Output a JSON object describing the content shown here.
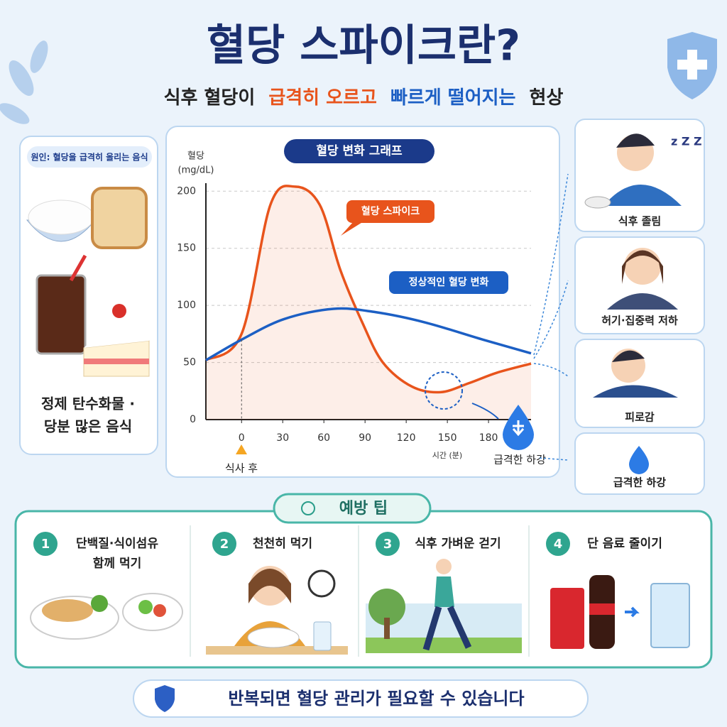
{
  "header": {
    "title": "혈당 스파이크란?",
    "subtitle": [
      {
        "text": "식후 혈당이",
        "color": "#222222"
      },
      {
        "text": "급격히 오르고",
        "color": "#e8541c"
      },
      {
        "text": "빠르게 떨어지는",
        "color": "#1c5fc4"
      },
      {
        "text": "현상",
        "color": "#222222"
      }
    ]
  },
  "cause": {
    "label": "원인: 혈당을 급격히 올리는 음식",
    "text": [
      "정제 탄수화물 ·",
      "당분 많은 음식"
    ]
  },
  "chart_data": {
    "type": "line",
    "title": "혈당 변화 그래프",
    "y_label": "혈당",
    "y_unit": "(mg/dL)",
    "x_label": "시간 (분)",
    "xlim": [
      -26,
      211
    ],
    "xticks": [
      0,
      30,
      60,
      90,
      120,
      150,
      180
    ],
    "ylim": [
      0,
      207
    ],
    "yticks": [
      0,
      50,
      100,
      150,
      200
    ],
    "grid": true,
    "series": [
      {
        "name": "혈당 스파이크",
        "color": "#e8541c",
        "x": [
          -26,
          0,
          21,
          39,
          57,
          72,
          88,
          103,
          124,
          145,
          166,
          186,
          211
        ],
        "values": [
          52,
          75,
          188,
          204,
          188,
          131,
          85,
          50,
          29,
          24,
          32,
          41,
          49
        ]
      },
      {
        "name": "정상적인 혈당 변화",
        "color": "#1c5fc4",
        "x": [
          -26,
          0,
          31,
          67,
          98,
          134,
          176,
          211
        ],
        "values": [
          52,
          70,
          88,
          97,
          94,
          85,
          70,
          58
        ]
      }
    ],
    "annotations": {
      "meal": "식사 후",
      "drop": "급격한 하강"
    }
  },
  "symptoms": [
    "식후 졸림",
    "허기·집중력 저하",
    "피로감",
    "급격한 하강"
  ],
  "tips": {
    "title": "예방 팁",
    "items": [
      {
        "number": "1",
        "lines": [
          "단백질·식이섬유",
          "함께 먹기"
        ]
      },
      {
        "number": "2",
        "lines": [
          "천천히 먹기"
        ]
      },
      {
        "number": "3",
        "lines": [
          "식후 가벼운 걷기"
        ]
      },
      {
        "number": "4",
        "lines": [
          "단 음료 줄이기"
        ]
      }
    ]
  },
  "footer": "반복되면 혈당 관리가 필요할 수 있습니다"
}
